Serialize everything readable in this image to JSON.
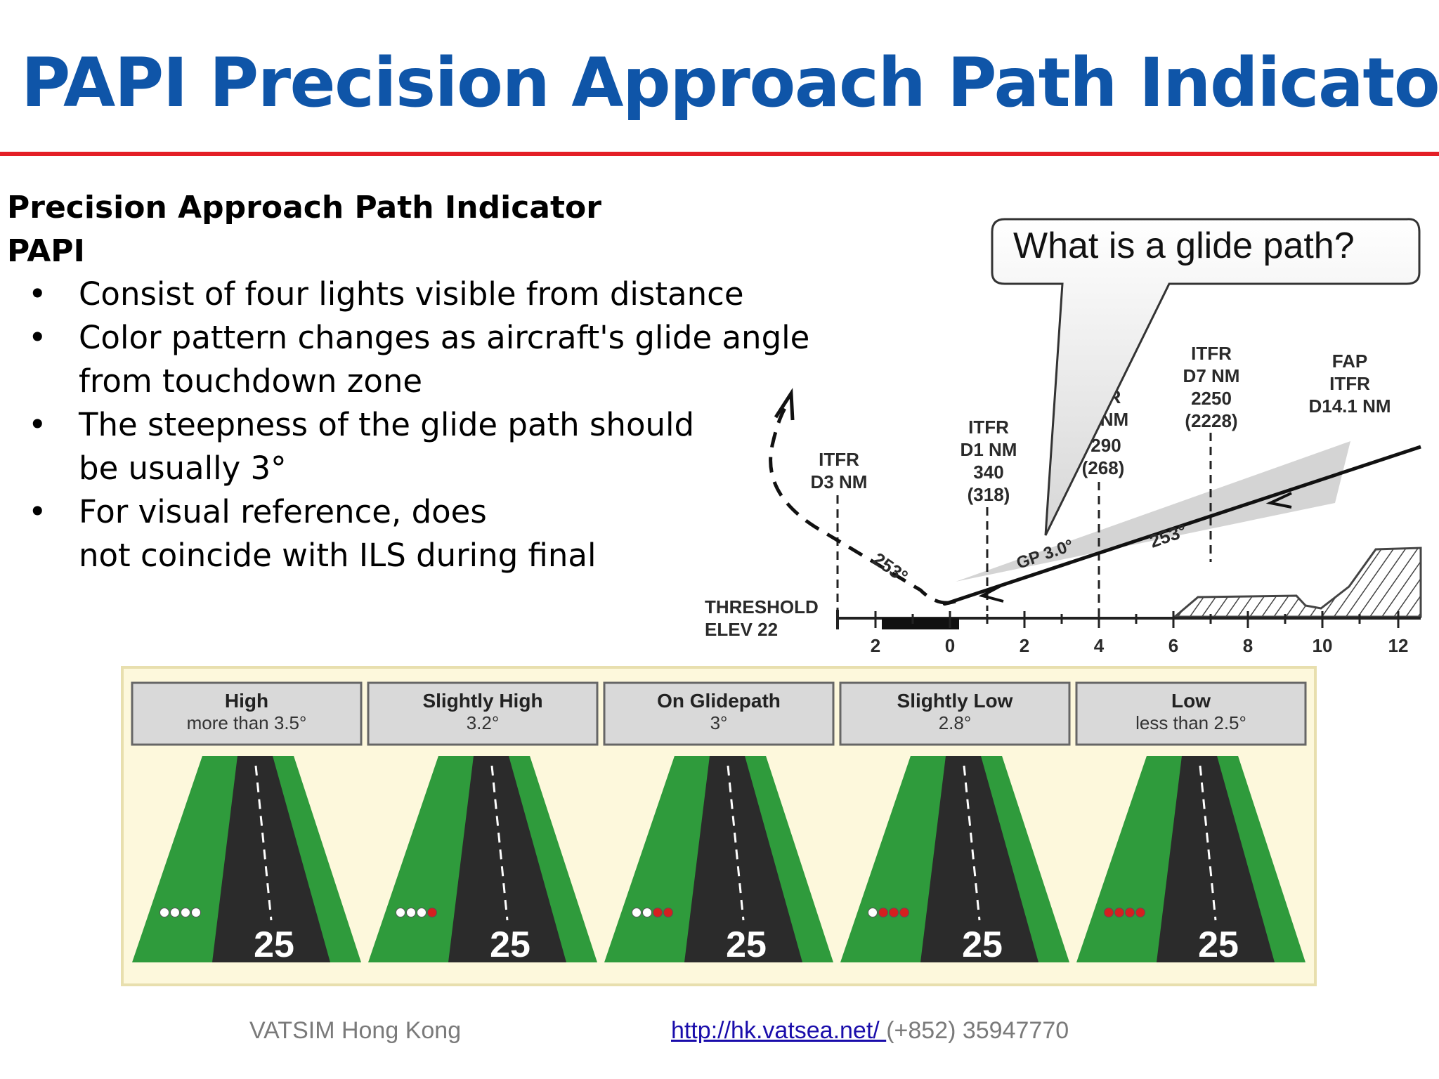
{
  "title": "PAPI Precision Approach Path Indicator",
  "content": {
    "heading_line1": "Precision Approach Path Indicator",
    "heading_line2": "PAPI",
    "bullet_char": "•",
    "bullets": [
      [
        "Consist of four lights visible from distance"
      ],
      [
        "Color pattern changes as aircraft's glide angle",
        "from touchdown zone"
      ],
      [
        "The steepness of the glide path should",
        "be usually 3°"
      ],
      [
        "For visual reference, does",
        "not coincide with ILS during final"
      ]
    ]
  },
  "callout": {
    "text": "What is a glide path?"
  },
  "approach_chart": {
    "threshold_label": [
      "THRESHOLD",
      "ELEV 22"
    ],
    "fixes": [
      {
        "lines": [
          "ITFR",
          "D3 NM"
        ]
      },
      {
        "lines": [
          "ITFR",
          "D1 NM",
          "340",
          "(318)"
        ]
      },
      {
        "lines": [
          "R",
          "NM",
          "290",
          "(268)"
        ]
      },
      {
        "lines": [
          "ITFR",
          "D7 NM",
          "2250",
          "(2228)"
        ]
      },
      {
        "lines": [
          "FAP",
          "ITFR",
          "D14.1 NM"
        ]
      }
    ],
    "gp_label": "GP 3.0°",
    "course_label": "253°",
    "missed_label": "253°",
    "axis_ticks": [
      "2",
      "0",
      "2",
      "4",
      "6",
      "8",
      "10",
      "12"
    ]
  },
  "papi_panels": [
    {
      "label": "High",
      "sub": "more than 3.5°",
      "lights": [
        "white",
        "white",
        "white",
        "white"
      ],
      "runway": "25"
    },
    {
      "label": "Slightly High",
      "sub": "3.2°",
      "lights": [
        "white",
        "white",
        "white",
        "red"
      ],
      "runway": "25"
    },
    {
      "label": "On Glidepath",
      "sub": "3°",
      "lights": [
        "white",
        "white",
        "red",
        "red"
      ],
      "runway": "25"
    },
    {
      "label": "Slightly Low",
      "sub": "2.8°",
      "lights": [
        "white",
        "red",
        "red",
        "red"
      ],
      "runway": "25"
    },
    {
      "label": "Low",
      "sub": "less than 2.5°",
      "lights": [
        "red",
        "red",
        "red",
        "red"
      ],
      "runway": "25"
    }
  ],
  "footer": {
    "org": "VATSIM Hong Kong",
    "url": "http://hk.vatsea.net/ ",
    "phone": "(+852) 35947770"
  },
  "colors": {
    "title_blue": "#0f55a8",
    "rule_red": "#e41e26",
    "grass_green": "#2e9a3a",
    "light_white": "#ffffff",
    "light_red": "#d61f1f"
  }
}
